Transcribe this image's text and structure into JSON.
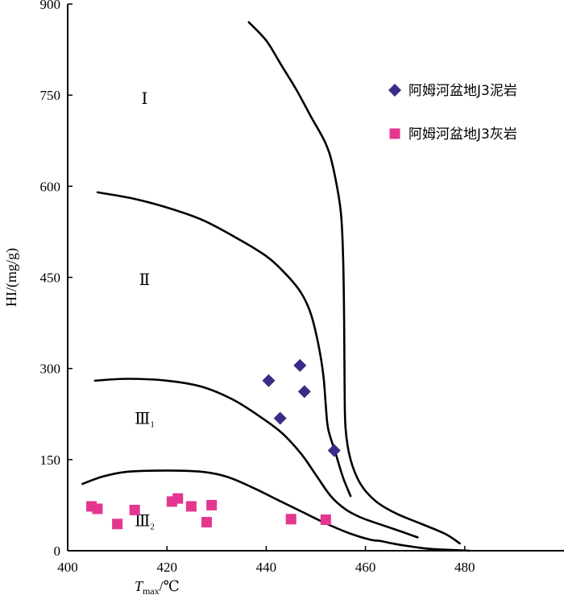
{
  "chart_data": {
    "type": "scatter",
    "title": "",
    "xlabel": {
      "main": "T",
      "sub": "max",
      "unit": "/℃"
    },
    "ylabel": "HI/(mg/g)",
    "xlim": [
      400,
      500
    ],
    "ylim": [
      0,
      900
    ],
    "xticks": [
      400,
      420,
      440,
      460,
      480
    ],
    "yticks": [
      0,
      150,
      300,
      450,
      600,
      750,
      900
    ],
    "xtick_labels": [
      "400",
      "420",
      "440",
      "460",
      "480"
    ],
    "ytick_labels": [
      "0",
      "150",
      "300",
      "450",
      "600",
      "750",
      "900"
    ],
    "grid": false,
    "legend_position": "top-right",
    "series": [
      {
        "name": "阿姆河盆地J3泥岩",
        "marker": "diamond",
        "color": "#3d2a86",
        "points": [
          [
            440.5,
            280
          ],
          [
            442.8,
            218
          ],
          [
            446.8,
            305
          ],
          [
            447.7,
            262
          ],
          [
            453.7,
            165
          ]
        ]
      },
      {
        "name": "阿姆河盆地J3灰岩",
        "marker": "square",
        "color": "#e4368f",
        "points": [
          [
            404.8,
            73
          ],
          [
            406,
            69
          ],
          [
            410,
            44
          ],
          [
            413.5,
            67
          ],
          [
            421,
            81
          ],
          [
            422.2,
            86
          ],
          [
            424.9,
            73
          ],
          [
            428,
            47
          ],
          [
            429,
            75
          ],
          [
            445,
            52
          ],
          [
            452,
            51
          ]
        ]
      }
    ],
    "boundary_curves": [
      {
        "name": "I-II",
        "points": [
          [
            436.5,
            870
          ],
          [
            440,
            840
          ],
          [
            443,
            800
          ],
          [
            446,
            760
          ],
          [
            449,
            715
          ],
          [
            452,
            670
          ],
          [
            453.5,
            630
          ],
          [
            455,
            560
          ],
          [
            455.5,
            480
          ],
          [
            455.7,
            380
          ],
          [
            455.8,
            270
          ],
          [
            456,
            200
          ],
          [
            457,
            150
          ],
          [
            459,
            110
          ],
          [
            462,
            82
          ],
          [
            466,
            62
          ],
          [
            471,
            45
          ],
          [
            476,
            28
          ],
          [
            479,
            12
          ]
        ]
      },
      {
        "name": "II-III1",
        "points": [
          [
            406,
            590
          ],
          [
            413,
            580
          ],
          [
            420,
            565
          ],
          [
            427,
            545
          ],
          [
            434,
            515
          ],
          [
            440,
            485
          ],
          [
            444,
            455
          ],
          [
            447,
            425
          ],
          [
            449,
            390
          ],
          [
            450.5,
            340
          ],
          [
            451.5,
            290
          ],
          [
            452,
            240
          ],
          [
            452.5,
            200
          ],
          [
            454,
            160
          ],
          [
            455.5,
            120
          ],
          [
            457,
            90
          ]
        ]
      },
      {
        "name": "III1-III2",
        "points": [
          [
            405.5,
            280
          ],
          [
            412,
            283
          ],
          [
            420,
            280
          ],
          [
            427,
            270
          ],
          [
            433,
            250
          ],
          [
            438,
            225
          ],
          [
            443,
            195
          ],
          [
            447,
            160
          ],
          [
            450,
            125
          ],
          [
            453,
            90
          ],
          [
            456,
            68
          ],
          [
            459,
            55
          ],
          [
            462,
            46
          ],
          [
            466,
            35
          ],
          [
            470.5,
            22
          ]
        ]
      },
      {
        "name": "III2-lower",
        "points": [
          [
            403,
            110
          ],
          [
            407,
            122
          ],
          [
            412,
            130
          ],
          [
            420,
            132
          ],
          [
            427,
            130
          ],
          [
            432,
            122
          ],
          [
            437,
            105
          ],
          [
            442,
            85
          ],
          [
            447,
            65
          ],
          [
            452,
            45
          ],
          [
            457,
            28
          ],
          [
            461,
            18
          ],
          [
            463,
            16
          ],
          [
            466,
            11
          ],
          [
            470,
            6
          ],
          [
            473,
            3
          ],
          [
            478,
            1
          ],
          [
            481,
            0
          ]
        ]
      }
    ],
    "region_labels": [
      {
        "text": "Ⅰ",
        "sub": "",
        "x": 415.5,
        "y": 745
      },
      {
        "text": "Ⅱ",
        "sub": "",
        "x": 415.5,
        "y": 447
      },
      {
        "text": "Ⅲ",
        "sub": "1",
        "x": 415.5,
        "y": 218
      },
      {
        "text": "Ⅲ",
        "sub": "2",
        "x": 415.5,
        "y": 50
      }
    ]
  }
}
